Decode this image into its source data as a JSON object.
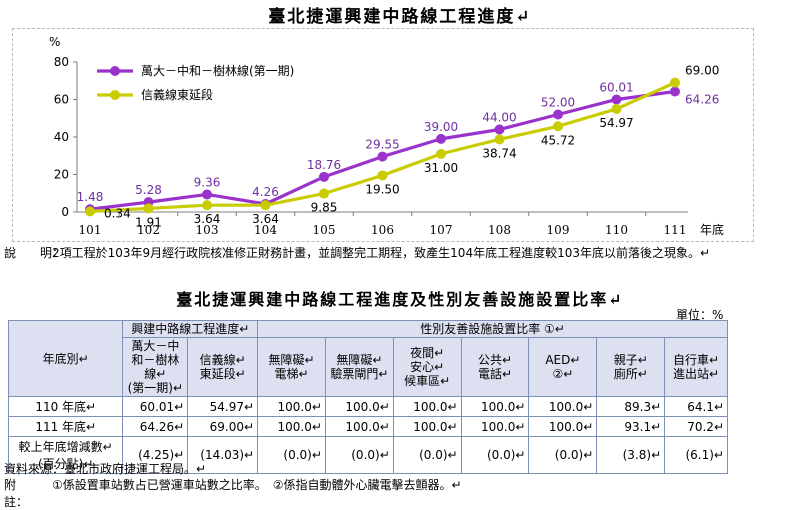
{
  "chart": {
    "title": "臺北捷運興建中路線工程進度↵",
    "unit_label": "%",
    "x_suffix": "年底"
  },
  "chart_data": {
    "type": "line",
    "title": "臺北捷運興建中路線工程進度",
    "ylabel": "%",
    "xlabel": "年底",
    "ylim": [
      0,
      80
    ],
    "yticks": [
      0,
      20,
      40,
      60,
      80
    ],
    "categories": [
      "101",
      "102",
      "103",
      "104",
      "105",
      "106",
      "107",
      "108",
      "109",
      "110",
      "111"
    ],
    "legend_position": "top-left",
    "series": [
      {
        "name": "萬大－中和－樹林線(第一期)",
        "color": "#9933cc",
        "values": [
          1.48,
          5.28,
          9.36,
          4.26,
          18.76,
          29.55,
          39.0,
          44.0,
          52.0,
          60.01,
          64.26
        ],
        "labels": [
          "1.48",
          "5.28",
          "9.36",
          "4.26",
          "18.76",
          "29.55",
          "39.00",
          "44.00",
          "52.00",
          "60.01",
          "64.26"
        ]
      },
      {
        "name": "信義線東延段",
        "color": "#c8cc00",
        "values": [
          0.34,
          1.91,
          3.64,
          3.64,
          9.85,
          19.5,
          31.0,
          38.74,
          45.72,
          54.97,
          69.0
        ],
        "labels": [
          "0.34",
          "1.91",
          "3.64",
          "3.64",
          "9.85",
          "19.50",
          "31.00",
          "38.74",
          "45.72",
          "54.97",
          "69.00"
        ]
      }
    ]
  },
  "note": {
    "label": "說　　明：",
    "text": "2項工程於103年9月經行政院核准修正財務計畫，並調整完工期程，致產生104年底工程進度較103年底以前落後之現象。↵"
  },
  "table": {
    "title": "臺北捷運興建中路線工程進度及性別友善設施設置比率↵",
    "unit": "單位：%",
    "col_year": "年底別↵",
    "group1": "興建中路線工程進度↵",
    "group2": "性別友善設施設置比率 ①↵",
    "headers": [
      "萬大－中和－樹林線↵(第一期)↵",
      "信義線↵東延段↵",
      "無障礙↵電梯↵",
      "無障礙↵驗票閘門↵",
      "夜間↵安心↵候車區↵",
      "公共↵電話↵",
      "AED↵②↵",
      "親子↵廁所↵",
      "自行車↵進出站↵"
    ],
    "rows": [
      {
        "label": "110 年底↵",
        "values": [
          "60.01↵",
          "54.97↵",
          "100.0↵",
          "100.0↵",
          "100.0↵",
          "100.0↵",
          "100.0↵",
          "89.3↵",
          "64.1↵"
        ]
      },
      {
        "label": "111 年底↵",
        "values": [
          "64.26↵",
          "69.00↵",
          "100.0↵",
          "100.0↵",
          "100.0↵",
          "100.0↵",
          "100.0↵",
          "93.1↵",
          "70.2↵"
        ]
      },
      {
        "label": "較上年底增減數↵(百分點)↵",
        "values": [
          "(4.25)↵",
          "(14.03)↵",
          "(0.0)↵",
          "(0.0)↵",
          "(0.0)↵",
          "(0.0)↵",
          "(0.0)↵",
          "(3.8)↵",
          "(6.1)↵"
        ]
      }
    ]
  },
  "source": "資料來源：臺北市政府捷運工程局。↵",
  "footnote": {
    "label": "附　　註：",
    "text": "①係設置車站數占已營運車站數之比率。　②係指自動體外心臟電擊去顫器。↵"
  }
}
